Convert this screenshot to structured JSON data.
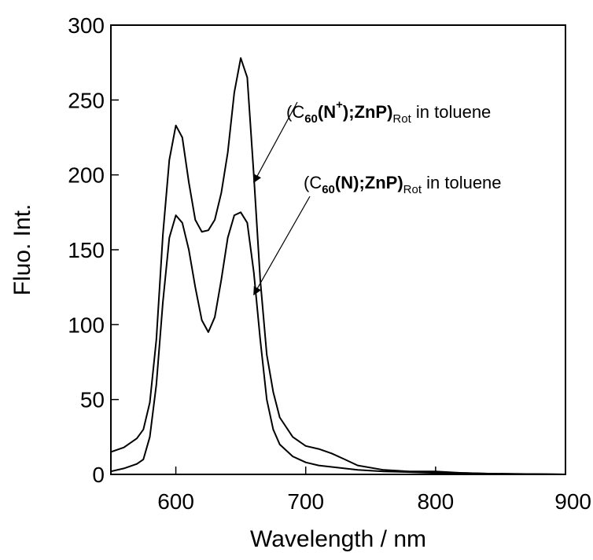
{
  "chart_data": {
    "type": "line",
    "title": "",
    "xlabel": "Wavelength / nm",
    "ylabel": "Fluo. Int.",
    "xlim": [
      550,
      900
    ],
    "ylim": [
      0,
      300
    ],
    "xticks": [
      600,
      700,
      800,
      900
    ],
    "yticks": [
      0,
      50,
      100,
      150,
      200,
      250,
      300
    ],
    "grid": false,
    "legend": "none",
    "line_color": "#000000",
    "series": [
      {
        "x": [
          550,
          560,
          570,
          575,
          580,
          585,
          590,
          595,
          600,
          605,
          610,
          615,
          620,
          625,
          630,
          635,
          640,
          645,
          650,
          655,
          660,
          665,
          670,
          675,
          680,
          690,
          700,
          710,
          720,
          730,
          740,
          760,
          780,
          800,
          820,
          840,
          860,
          880,
          900
        ],
        "y": [
          15,
          18,
          24,
          30,
          48,
          90,
          160,
          210,
          233,
          225,
          195,
          170,
          162,
          163,
          170,
          188,
          215,
          255,
          278,
          265,
          200,
          130,
          80,
          55,
          38,
          25,
          19,
          17,
          14,
          10,
          6,
          3,
          2,
          2,
          1,
          0.5,
          0.3,
          0.2,
          0
        ]
      },
      {
        "x": [
          550,
          560,
          570,
          575,
          580,
          585,
          590,
          595,
          600,
          605,
          610,
          615,
          620,
          625,
          630,
          635,
          640,
          645,
          650,
          655,
          660,
          665,
          670,
          675,
          680,
          690,
          700,
          710,
          720,
          730,
          740,
          760,
          780,
          800,
          820,
          840,
          860,
          880,
          900
        ],
        "y": [
          2,
          4,
          7,
          10,
          25,
          60,
          115,
          158,
          173,
          168,
          150,
          125,
          103,
          95,
          105,
          130,
          158,
          173,
          175,
          168,
          135,
          90,
          50,
          30,
          20,
          12,
          8,
          6,
          5,
          4,
          3,
          2,
          1.5,
          1,
          1,
          0.5,
          0.3,
          0.2,
          0
        ]
      }
    ],
    "annotations": [
      {
        "prefix": "(C",
        "sub1": "60",
        "mid": "(N",
        "sup": "+",
        "after": ");ZnP)",
        "sub2": "Rot",
        "suffix": " in toluene",
        "arrow_to": {
          "x": 660,
          "y": 195
        }
      },
      {
        "prefix": "(C",
        "sub1": "60",
        "mid": "(N",
        "sup": "",
        "after": ");ZnP)",
        "sub2": "Rot",
        "suffix": " in toluene",
        "arrow_to": {
          "x": 660,
          "y": 120
        }
      }
    ]
  }
}
